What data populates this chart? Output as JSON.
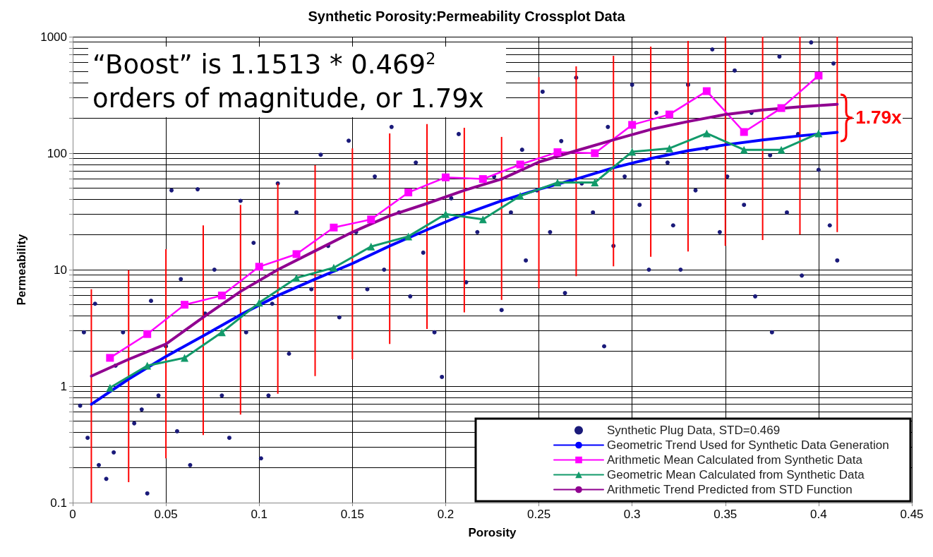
{
  "chart_data": {
    "type": "line",
    "title": "Synthetic Porosity:Permeability Crossplot Data",
    "xlabel": "Porosity",
    "ylabel": "Permeability",
    "annotations": [
      "“Boost” is 1.1513 * 0.469$^{2}$ orders of magnitude, or 1.79x",
      {
        "text": "1.79x",
        "x": 0.41,
        "y": 200
      }
    ],
    "xlim": [
      0,
      0.45
    ],
    "xticks": [
      0,
      0.05,
      0.1,
      0.15,
      0.2,
      0.25,
      0.3,
      0.35,
      0.4,
      0.45
    ],
    "ylim": [
      0.1,
      1000
    ],
    "log": "y",
    "yticks": [
      0.1,
      {
        "value": 0.2,
        "label": null
      },
      {
        "value": 0.3,
        "label": null
      },
      {
        "value": 0.4,
        "label": null
      },
      {
        "value": 0.5,
        "label": null
      },
      {
        "value": 0.6,
        "label": null
      },
      {
        "value": 0.7,
        "label": null
      },
      {
        "value": 0.8,
        "label": null
      },
      {
        "value": 0.9,
        "label": null
      },
      1,
      {
        "value": 2,
        "label": null
      },
      {
        "value": 3,
        "label": null
      },
      {
        "value": 4,
        "label": null
      },
      {
        "value": 5,
        "label": null
      },
      {
        "value": 6,
        "label": null
      },
      {
        "value": 7,
        "label": null
      },
      {
        "value": 8,
        "label": null
      },
      {
        "value": 9,
        "label": null
      },
      10,
      {
        "value": 20,
        "label": null
      },
      {
        "value": 30,
        "label": null
      },
      {
        "value": 40,
        "label": null
      },
      {
        "value": 50,
        "label": null
      },
      {
        "value": 60,
        "label": null
      },
      {
        "value": 70,
        "label": null
      },
      {
        "value": 80,
        "label": null
      },
      {
        "value": 90,
        "label": null
      },
      100,
      {
        "value": 200,
        "label": null
      },
      {
        "value": 300,
        "label": null
      },
      {
        "value": 400,
        "label": null
      },
      {
        "value": 500,
        "label": null
      },
      {
        "value": 600,
        "label": null
      },
      {
        "value": 700,
        "label": null
      },
      {
        "value": 800,
        "label": null
      },
      {
        "value": 900,
        "label": null
      },
      1000
    ],
    "grid": true,
    "legend": "bottom right",
    "series": [
      {
        "type": "scatter",
        "name": "Synthetic Plug Data, STD=0.469",
        "color": "#1a1a7a",
        "marker": "circle",
        "x": [
          0.004,
          0.006,
          0.008,
          0.012,
          0.014,
          0.018,
          0.022,
          0.023,
          0.027,
          0.033,
          0.037,
          0.04,
          0.042,
          0.046,
          0.05,
          0.053,
          0.056,
          0.058,
          0.063,
          0.067,
          0.071,
          0.076,
          0.08,
          0.084,
          0.09,
          0.093,
          0.097,
          0.101,
          0.105,
          0.107,
          0.11,
          0.116,
          0.12,
          0.128,
          0.133,
          0.137,
          0.143,
          0.148,
          0.152,
          0.158,
          0.162,
          0.167,
          0.171,
          0.175,
          0.181,
          0.184,
          0.188,
          0.194,
          0.198,
          0.203,
          0.207,
          0.211,
          0.217,
          0.226,
          0.23,
          0.235,
          0.241,
          0.243,
          0.249,
          0.252,
          0.256,
          0.262,
          0.264,
          0.27,
          0.273,
          0.279,
          0.285,
          0.287,
          0.29,
          0.296,
          0.3,
          0.304,
          0.309,
          0.313,
          0.319,
          0.322,
          0.326,
          0.33,
          0.334,
          0.34,
          0.343,
          0.347,
          0.351,
          0.355,
          0.36,
          0.364,
          0.366,
          0.374,
          0.375,
          0.379,
          0.383,
          0.389,
          0.391,
          0.396,
          0.4,
          0.406,
          0.41,
          0.408
        ],
        "values": [
          0.68,
          2.9,
          0.36,
          5.1,
          0.21,
          0.16,
          0.27,
          1.5,
          2.9,
          0.48,
          0.63,
          0.12,
          5.4,
          0.83,
          2.2,
          48,
          0.41,
          8.3,
          0.21,
          49,
          4.2,
          10,
          0.83,
          0.36,
          39,
          2.9,
          17,
          0.24,
          0.83,
          5.1,
          55,
          1.9,
          31,
          6.8,
          97,
          16,
          3.9,
          128,
          21,
          6.8,
          63,
          10,
          168,
          31,
          5.9,
          83,
          14,
          2.9,
          1.2,
          41,
          146,
          7.8,
          21,
          63,
          4.5,
          31,
          107,
          12,
          48,
          337,
          21,
          127,
          6.3,
          445,
          55,
          31,
          2.2,
          168,
          16,
          63,
          387,
          36,
          10,
          222,
          83,
          24,
          10,
          387,
          48,
          110,
          778,
          21,
          63,
          512,
          36,
          222,
          5.9,
          96,
          2.9,
          676,
          31,
          146,
          8.9,
          894,
          72,
          24,
          12,
          589
        ]
      },
      {
        "name": "Geometric Trend Used for Synthetic Data Generation",
        "color": "#0000ff",
        "marker": "none",
        "x": [
          0.01,
          0.03,
          0.05,
          0.07,
          0.09,
          0.11,
          0.13,
          0.15,
          0.17,
          0.19,
          0.21,
          0.23,
          0.25,
          0.27,
          0.29,
          0.31,
          0.33,
          0.35,
          0.37,
          0.39,
          0.41
        ],
        "values": [
          0.7,
          1.15,
          1.8,
          2.7,
          4.1,
          6,
          8.3,
          11.3,
          16,
          22,
          30,
          39,
          49,
          60,
          75,
          90,
          105,
          118,
          130,
          141,
          151
        ]
      },
      {
        "name": "Arithmetic Mean Calculated from Synthetic Data",
        "color": "#ff00ff",
        "marker": "square",
        "x": [
          0.02,
          0.04,
          0.06,
          0.08,
          0.1,
          0.12,
          0.14,
          0.16,
          0.18,
          0.2,
          0.22,
          0.24,
          0.26,
          0.28,
          0.3,
          0.32,
          0.34,
          0.36,
          0.38,
          0.4
        ],
        "values": [
          1.75,
          2.8,
          5,
          6,
          10.6,
          13.6,
          23,
          27,
          46,
          62,
          60,
          80,
          102,
          100,
          175,
          215,
          341,
          152,
          244,
          464
        ]
      },
      {
        "name": "Geometric Mean Calculated from Synthetic Data",
        "color": "#129a6a",
        "marker": "triangle",
        "x": [
          0.02,
          0.04,
          0.06,
          0.08,
          0.1,
          0.12,
          0.14,
          0.16,
          0.18,
          0.2,
          0.22,
          0.24,
          0.26,
          0.28,
          0.3,
          0.32,
          0.34,
          0.36,
          0.38,
          0.4
        ],
        "values": [
          0.97,
          1.5,
          1.75,
          2.9,
          5.2,
          8.5,
          10.4,
          15.8,
          19.3,
          30,
          27,
          43,
          56,
          56,
          103,
          110,
          148,
          107,
          107,
          148
        ]
      },
      {
        "name": "Arithmetic Trend Predicted from STD Function",
        "color": "#900090",
        "marker": "none",
        "x": [
          0.01,
          0.03,
          0.05,
          0.07,
          0.09,
          0.11,
          0.13,
          0.15,
          0.17,
          0.19,
          0.21,
          0.23,
          0.25,
          0.27,
          0.29,
          0.31,
          0.33,
          0.35,
          0.37,
          0.39,
          0.41
        ],
        "values": [
          1.22,
          1.7,
          2.3,
          3.9,
          6.5,
          10,
          14.5,
          21,
          29,
          37,
          48,
          60,
          84,
          105,
          130,
          160,
          187,
          215,
          235,
          250,
          263
        ]
      },
      {
        "type": "bar",
        "color": "#ff0000",
        "x": [
          0.01,
          0.03,
          0.05,
          0.07,
          0.09,
          0.11,
          0.13,
          0.15,
          0.17,
          0.19,
          0.21,
          0.23,
          0.25,
          0.27,
          0.29,
          0.31,
          0.33,
          0.35,
          0.37,
          0.39,
          0.41
        ],
        "base": [
          0.1,
          0.15,
          0.24,
          0.38,
          0.57,
          0.86,
          1.22,
          1.7,
          2.3,
          3.1,
          4.3,
          5.5,
          6.9,
          8.8,
          10.7,
          12.9,
          14.3,
          16,
          18,
          20,
          21
        ],
        "values": [
          6.7,
          9.75,
          14.76,
          23.62,
          35.43,
          54.14,
          77.78,
          108.3,
          145.7,
          174.9,
          160.7,
          132.5,
          443.1,
          547.2,
          674.3,
          809.1,
          905.7,
          984,
          982,
          980,
          979
        ]
      }
    ]
  }
}
